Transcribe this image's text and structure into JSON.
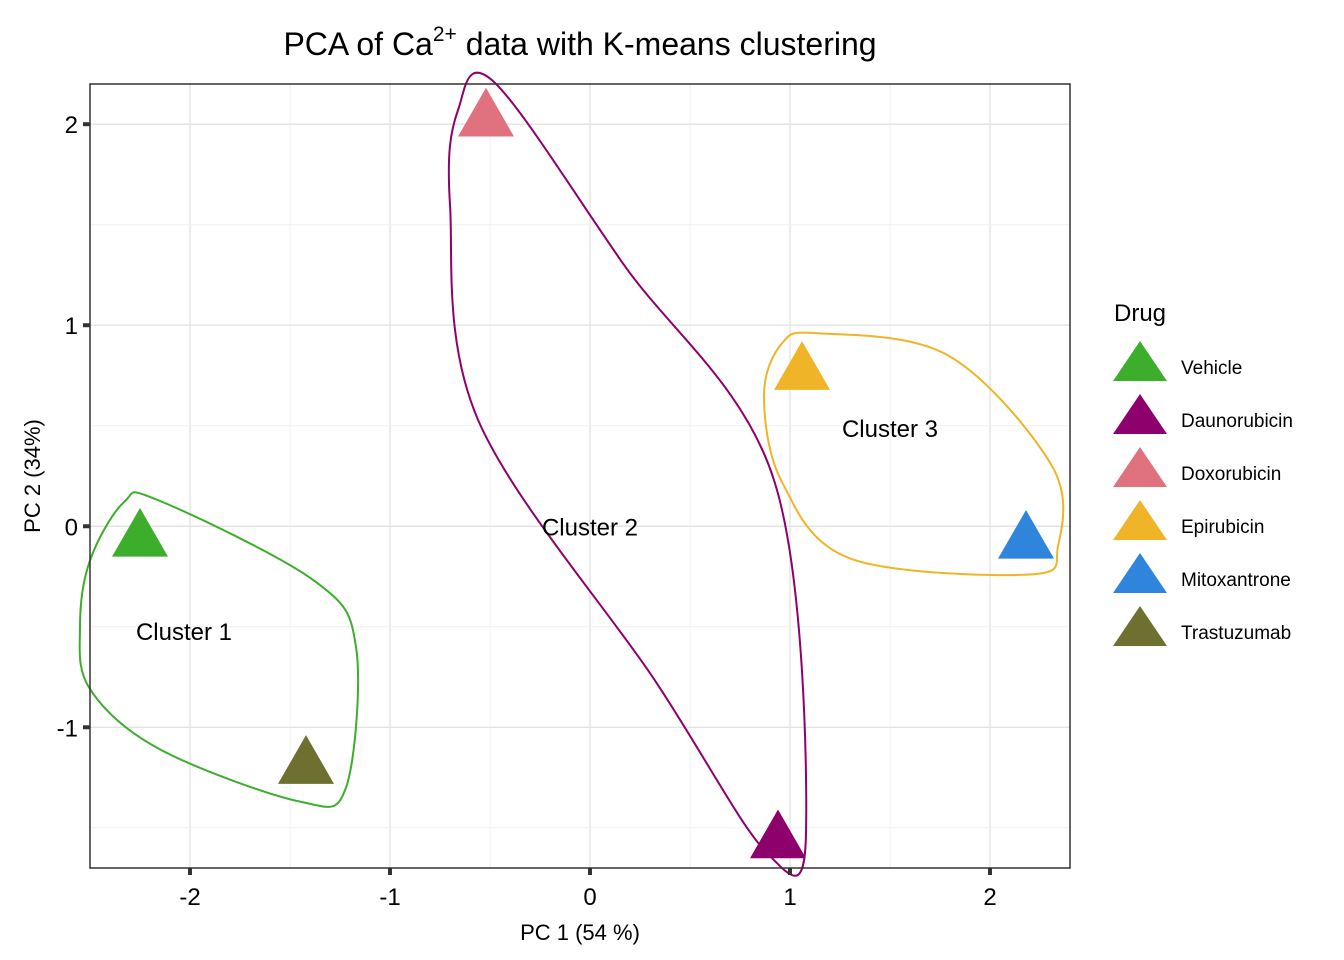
{
  "chart_data": {
    "type": "scatter",
    "title_main": "PCA of Ca",
    "title_sup": "2+",
    "title_rest": " data with K-means clustering",
    "xlabel": "PC 1 (54 %)",
    "ylabel": "PC 2 (34%)",
    "xlim": [
      -2.5,
      2.4
    ],
    "ylim": [
      -1.7,
      2.2
    ],
    "xticks": [
      -2,
      -1,
      0,
      1,
      2
    ],
    "yticks": [
      -1,
      0,
      1,
      2
    ],
    "grid": true,
    "legend_title": "Drug",
    "legend_position": "right",
    "series": [
      {
        "name": "Vehicle",
        "color": "#3DAE2B",
        "x": -2.25,
        "y": -0.05
      },
      {
        "name": "Daunorubicin",
        "color": "#8E006B",
        "x": 0.94,
        "y": -1.55
      },
      {
        "name": "Doxorubicin",
        "color": "#E0717F",
        "x": -0.52,
        "y": 2.04
      },
      {
        "name": "Epirubicin",
        "color": "#F0B428",
        "x": 1.06,
        "y": 0.78
      },
      {
        "name": "Mitoxantrone",
        "color": "#2F85DC",
        "x": 2.18,
        "y": -0.06
      },
      {
        "name": "Trastuzumab",
        "color": "#6E7030",
        "x": -1.42,
        "y": -1.18
      }
    ],
    "clusters": [
      {
        "label": "Cluster 1",
        "color": "#3DAE2B",
        "label_x": -2.03,
        "label_y": -0.52
      },
      {
        "label": "Cluster 2",
        "color": "#8E006B",
        "label_x": 0.0,
        "label_y": 0.0
      },
      {
        "label": "Cluster 3",
        "color": "#F0B428",
        "label_x": 1.5,
        "label_y": 0.49
      }
    ]
  }
}
